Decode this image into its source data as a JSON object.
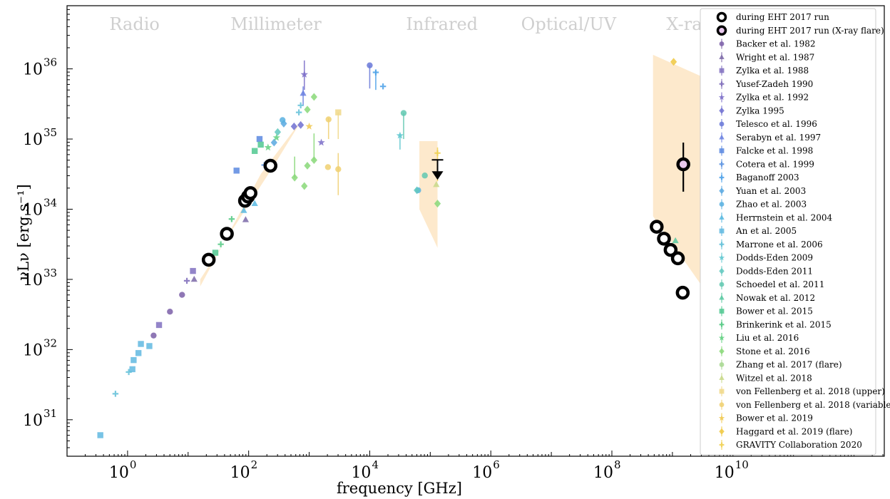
{
  "chart_data": {
    "type": "scatter",
    "title": "",
    "xlabel": "frequency [GHz]",
    "ylabel": "νLν [erg s⁻¹]",
    "xscale": "log",
    "yscale": "log",
    "xlim_log10": [
      -1,
      12.5
    ],
    "ylim_log10": [
      30.48,
      36.9
    ],
    "x_tick_exponents": [
      0,
      2,
      4,
      6,
      8,
      10
    ],
    "y_tick_exponents": [
      31,
      32,
      33,
      34,
      35,
      36
    ],
    "tick_base": "10",
    "band_labels": [
      {
        "text": "Radio",
        "x_log10": -0.3
      },
      {
        "text": "Millimeter",
        "x_log10": 1.7
      },
      {
        "text": "Infrared",
        "x_log10": 4.6
      },
      {
        "text": "Optical/UV",
        "x_log10": 6.5
      },
      {
        "text": "X-ray",
        "x_log10": 8.9
      }
    ],
    "legend_position": "right",
    "variability_bands": [
      {
        "name": "millimeter",
        "color": "#fde9cc",
        "polygon": [
          [
            1.2,
            32.9
          ],
          [
            2.2,
            34.5
          ],
          [
            2.9,
            35.3
          ],
          [
            2.4,
            34.6
          ],
          [
            1.8,
            33.8
          ],
          [
            1.2,
            33.0
          ]
        ]
      },
      {
        "name": "infrared",
        "color": "#fde9cc",
        "polygon": [
          [
            4.82,
            34.97
          ],
          [
            5.12,
            34.97
          ],
          [
            5.12,
            33.45
          ],
          [
            4.82,
            34.0
          ]
        ]
      },
      {
        "name": "x-ray",
        "color": "#fde9cc",
        "polygon": [
          [
            8.68,
            36.2
          ],
          [
            9.98,
            35.7
          ],
          [
            9.98,
            32.3
          ],
          [
            8.68,
            33.9
          ]
        ]
      }
    ],
    "series": [
      {
        "name": "during EHT 2017 run",
        "style": "eht",
        "marker": "ring",
        "color": "#000000",
        "fill": "#ffffff",
        "points": [
          [
            1.34,
            33.28
          ],
          [
            1.64,
            33.65
          ],
          [
            1.94,
            34.12
          ],
          [
            1.99,
            34.18
          ],
          [
            2.03,
            34.23
          ],
          [
            2.36,
            34.62
          ],
          [
            8.74,
            33.75
          ],
          [
            8.86,
            33.58
          ],
          [
            8.97,
            33.42
          ],
          [
            9.09,
            33.3
          ],
          [
            9.17,
            32.81
          ]
        ],
        "errors": []
      },
      {
        "name": "during EHT 2017 run (X-ray flare)",
        "style": "eht",
        "marker": "ring",
        "color": "#000000",
        "fill": "#e9c9ee",
        "points": [
          [
            9.18,
            34.64
          ],
          [
            9.99,
            33.79
          ]
        ],
        "errors": [
          [
            9.18,
            34.25,
            34.95
          ],
          [
            9.99,
            32.7,
            34.12
          ]
        ]
      },
      {
        "name": "Backer et al. 1982",
        "marker": "circle",
        "color": "#7b5fa8",
        "points": [
          [
            0.43,
            32.2
          ],
          [
            0.9,
            32.78
          ],
          [
            0.7,
            32.54
          ]
        ]
      },
      {
        "name": "Wright et al. 1987",
        "marker": "triangle",
        "color": "#7b68a8",
        "points": [
          [
            1.95,
            33.85
          ],
          [
            1.1,
            33.0
          ]
        ]
      },
      {
        "name": "Zylka et al. 1988",
        "marker": "square",
        "color": "#8070c0",
        "points": [
          [
            0.52,
            32.35
          ],
          [
            1.08,
            33.12
          ]
        ]
      },
      {
        "name": "Yusef-Zadeh 1990",
        "marker": "plus",
        "color": "#7b68b8",
        "points": [
          [
            0.98,
            32.98
          ]
        ]
      },
      {
        "name": "Zylka et al. 1992",
        "marker": "star",
        "color": "#7a6cc8",
        "points": [
          [
            2.92,
            35.92
          ],
          [
            3.2,
            34.95
          ]
        ],
        "errors": [
          [
            2.92,
            35.7,
            36.12
          ]
        ]
      },
      {
        "name": "Zylka 1995",
        "marker": "diamond",
        "color": "#6e6ed0",
        "points": [
          [
            2.75,
            35.18
          ],
          [
            2.86,
            35.2
          ]
        ]
      },
      {
        "name": "Telesco et al. 1996",
        "marker": "circle",
        "color": "#6878d8",
        "points": [
          [
            4.0,
            36.05
          ]
        ],
        "errors": [
          [
            4.0,
            35.72,
            36.05
          ]
        ]
      },
      {
        "name": "Serabyn et al. 1997",
        "marker": "triangle",
        "color": "#6a80e0",
        "points": [
          [
            2.9,
            35.65
          ]
        ],
        "errors": [
          [
            2.9,
            35.48,
            35.75
          ]
        ]
      },
      {
        "name": "Falcke et al. 1998",
        "marker": "square",
        "color": "#5a88e0",
        "points": [
          [
            2.18,
            35.0
          ],
          [
            1.8,
            34.55
          ]
        ]
      },
      {
        "name": "Cotera et al. 1999",
        "marker": "plus",
        "color": "#5890e0",
        "points": [
          [
            2.26,
            34.63
          ]
        ]
      },
      {
        "name": "Baganoff 2003",
        "marker": "plus",
        "color": "#4aa0e8",
        "points": [
          [
            4.1,
            35.95
          ],
          [
            4.22,
            35.75
          ]
        ],
        "errors": [
          [
            4.1,
            35.7,
            35.98
          ]
        ]
      },
      {
        "name": "Yuan et al. 2003",
        "marker": "diamond",
        "color": "#58a8e0",
        "points": [
          [
            2.58,
            35.22
          ],
          [
            2.42,
            34.95
          ]
        ]
      },
      {
        "name": "Zhao et al. 2003",
        "marker": "circle",
        "color": "#58b0e0",
        "points": [
          [
            2.56,
            35.27
          ],
          [
            4.8,
            34.27
          ]
        ]
      },
      {
        "name": "Herrnstein et al. 2004",
        "marker": "triangle",
        "color": "#58b8e0",
        "points": [
          [
            1.92,
            33.98
          ],
          [
            2.1,
            34.08
          ]
        ]
      },
      {
        "name": "An et al. 2005",
        "marker": "square",
        "color": "#60b8e0",
        "points": [
          [
            -0.45,
            30.78
          ],
          [
            0.22,
            32.08
          ],
          [
            0.08,
            31.72
          ],
          [
            0.1,
            31.85
          ],
          [
            0.36,
            32.05
          ],
          [
            0.18,
            31.95
          ]
        ]
      },
      {
        "name": "Marrone et al. 2006",
        "marker": "plus",
        "color": "#60c0d8",
        "points": [
          [
            2.86,
            35.48
          ],
          [
            2.83,
            35.38
          ],
          [
            0.02,
            31.68
          ],
          [
            -0.2,
            31.37
          ]
        ]
      },
      {
        "name": "Dodds-Eden 2009",
        "marker": "star",
        "color": "#60c8d0",
        "points": [
          [
            4.5,
            35.05
          ]
        ],
        "errors": [
          [
            4.5,
            34.85,
            35.08
          ]
        ]
      },
      {
        "name": "Dodds-Eden 2011",
        "marker": "diamond",
        "color": "#60c8c0",
        "points": [
          [
            2.48,
            35.1
          ],
          [
            4.78,
            34.27
          ]
        ]
      },
      {
        "name": "Schoedel et al. 2011",
        "marker": "circle",
        "color": "#60c8b0",
        "points": [
          [
            4.56,
            35.37
          ],
          [
            4.91,
            34.48
          ]
        ],
        "errors": [
          [
            4.56,
            35.0,
            35.37
          ]
        ]
      },
      {
        "name": "Nowak et al. 2012",
        "marker": "triangle",
        "color": "#58c8a0",
        "points": [
          [
            9.05,
            33.55
          ]
        ]
      },
      {
        "name": "Bower et al. 2015",
        "marker": "square",
        "color": "#50c890",
        "points": [
          [
            2.1,
            34.83
          ],
          [
            2.2,
            34.92
          ],
          [
            1.45,
            33.38
          ]
        ]
      },
      {
        "name": "Brinkerink et al. 2015",
        "marker": "plus",
        "color": "#50c880",
        "points": [
          [
            1.54,
            33.5
          ],
          [
            1.72,
            33.86
          ]
        ]
      },
      {
        "name": "Liu et al. 2016",
        "marker": "star",
        "color": "#60d080",
        "points": [
          [
            2.32,
            34.88
          ],
          [
            2.46,
            35.02
          ]
        ]
      },
      {
        "name": "Stone et al. 2016",
        "marker": "diamond",
        "color": "#88d878",
        "points": [
          [
            3.08,
            35.6
          ],
          [
            2.97,
            35.42
          ],
          [
            2.76,
            34.45
          ],
          [
            2.97,
            34.62
          ],
          [
            3.08,
            34.7
          ],
          [
            5.12,
            34.08
          ],
          [
            2.92,
            34.33
          ]
        ],
        "errors": [
          [
            2.76,
            34.45,
            34.75
          ],
          [
            3.08,
            34.7,
            35.08
          ]
        ]
      },
      {
        "name": "Zhang et al. 2017 (flare)",
        "marker": "circle",
        "color": "#a8d890",
        "points": [
          [
            9.98,
            35.57
          ]
        ]
      },
      {
        "name": "Witzel et al. 2018",
        "marker": "triangle",
        "color": "#c8d888",
        "points": [
          [
            5.1,
            34.35
          ]
        ]
      },
      {
        "name": "von Fellenberg et al. 2018 (upper)",
        "marker": "square",
        "color": "#f0d888",
        "points": [
          [
            3.48,
            35.38
          ]
        ],
        "errors": [
          [
            3.48,
            35.0,
            35.38
          ]
        ]
      },
      {
        "name": "von Fellenberg et al. 2018 (variable)",
        "marker": "circle",
        "color": "#f0d070",
        "points": [
          [
            3.32,
            35.28
          ],
          [
            3.31,
            34.6
          ],
          [
            3.48,
            34.57
          ]
        ],
        "errors": [
          [
            3.32,
            35.0,
            35.3
          ],
          [
            3.48,
            34.2,
            34.8
          ]
        ]
      },
      {
        "name": "Bower et al. 2019",
        "marker": "star",
        "color": "#f0c850",
        "points": [
          [
            3.0,
            35.18
          ]
        ]
      },
      {
        "name": "Haggard et al. 2019 (flare)",
        "marker": "diamond",
        "color": "#f0c840",
        "points": [
          [
            9.02,
            36.1
          ]
        ]
      },
      {
        "name": "GRAVITY Collaboration 2020",
        "marker": "plus",
        "color": "#f0d050",
        "points": [
          [
            5.12,
            34.8
          ]
        ],
        "errors": [
          [
            5.12,
            34.4,
            34.88
          ]
        ]
      }
    ],
    "upper_limits": [
      {
        "name": "during EHT 2017 run",
        "x_log10": 5.12,
        "y_log10": 34.5,
        "color": "#000000"
      }
    ]
  }
}
